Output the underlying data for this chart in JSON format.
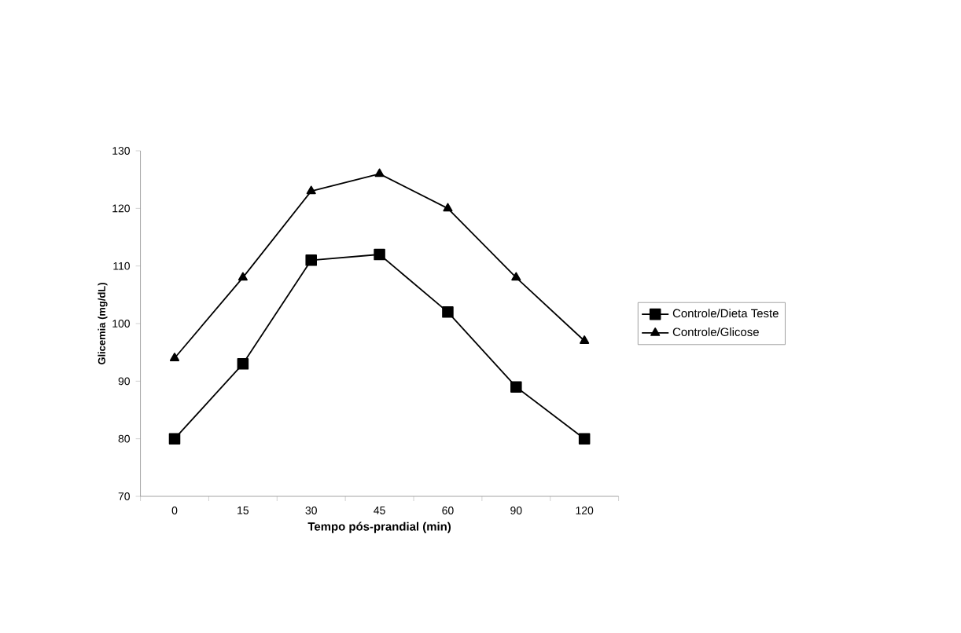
{
  "chart_data": {
    "type": "line",
    "xlabel": "Tempo pós-prandial (min)",
    "ylabel": "Glicemia (mg/dL)",
    "categories": [
      "0",
      "15",
      "30",
      "45",
      "60",
      "90",
      "120"
    ],
    "ylim": [
      70,
      130
    ],
    "yticks": [
      70,
      80,
      90,
      100,
      110,
      120,
      130
    ],
    "grid": false,
    "legend": "right",
    "line_style": "solid",
    "series": [
      {
        "name": "Controle/Dieta Teste",
        "color": "#000000",
        "marker": "square",
        "values": [
          80,
          93,
          111,
          112,
          102,
          89,
          80
        ]
      },
      {
        "name": "Controle/Glicose",
        "color": "#000000",
        "marker": "triangle",
        "values": [
          94,
          108,
          123,
          126,
          120,
          108,
          97
        ]
      }
    ]
  }
}
